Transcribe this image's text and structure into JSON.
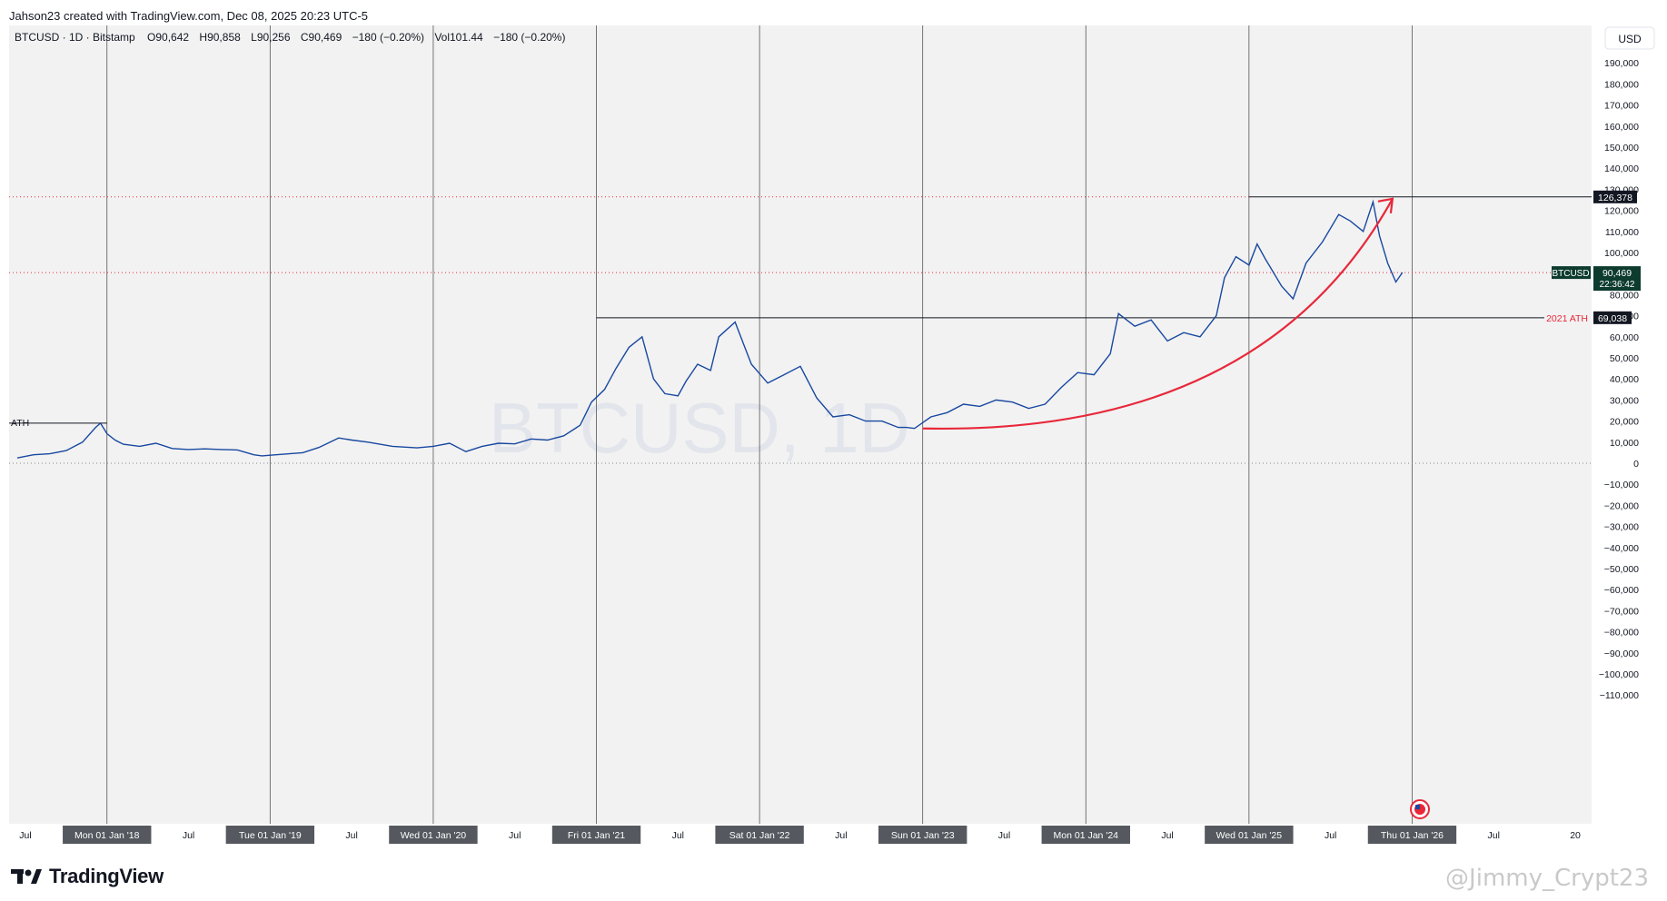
{
  "header": {
    "credit": "Jahson23 created with TradingView.com, Dec 08, 2025 20:23 UTC-5"
  },
  "legend": {
    "symbol": "BTCUSD · 1D · Bitstamp",
    "open": "O90,642",
    "high": "H90,858",
    "low": "L90,256",
    "close": "C90,469",
    "change": "−180 (−0.20%)",
    "volume": "Vol101.44",
    "volume_change": "−180 (−0.20%)"
  },
  "currency_button": "USD",
  "watermark": "BTCUSD, 1D",
  "footer": {
    "brand": "TradingView",
    "user_watermark": "@Jimmy_Crypt23"
  },
  "colors": {
    "price_line": "#1848a0",
    "arc": "#e8283a",
    "badge_bg": "#131722",
    "price_badge_bg": "#0d3b2e",
    "background": "#f2f2f2"
  },
  "chart_data": {
    "type": "line",
    "title": "BTCUSD · 1D · Bitstamp",
    "xlabel": "",
    "ylabel": "USD",
    "ylim": [
      -115000,
      200000
    ],
    "grid": false,
    "y_ticks": [
      190000,
      180000,
      170000,
      160000,
      150000,
      140000,
      130000,
      120000,
      110000,
      100000,
      80000,
      70000,
      60000,
      50000,
      40000,
      30000,
      20000,
      10000,
      0,
      -10000,
      -20000,
      -30000,
      -40000,
      -50000,
      -60000,
      -70000,
      -80000,
      -90000,
      -100000,
      -110000
    ],
    "y_tick_labels": [
      "190,000",
      "180,000",
      "170,000",
      "160,000",
      "150,000",
      "140,000",
      "130,000",
      "120,000",
      "110,000",
      "100,000",
      "80,000",
      "70,000",
      "60,000",
      "50,000",
      "40,000",
      "30,000",
      "20,000",
      "10,000",
      "0",
      "−10,000",
      "−20,000",
      "−30,000",
      "−40,000",
      "−50,000",
      "−60,000",
      "−70,000",
      "−80,000",
      "−90,000",
      "−100,000",
      "−110,000"
    ],
    "x_ticks": [
      {
        "t": 2017.5,
        "label": "Jul",
        "boxed": false
      },
      {
        "t": 2018.0,
        "label": "Mon 01 Jan '18",
        "boxed": true
      },
      {
        "t": 2018.5,
        "label": "Jul",
        "boxed": false
      },
      {
        "t": 2019.0,
        "label": "Tue 01 Jan '19",
        "boxed": true
      },
      {
        "t": 2019.5,
        "label": "Jul",
        "boxed": false
      },
      {
        "t": 2020.0,
        "label": "Wed 01 Jan '20",
        "boxed": true
      },
      {
        "t": 2020.5,
        "label": "Jul",
        "boxed": false
      },
      {
        "t": 2021.0,
        "label": "Fri 01 Jan '21",
        "boxed": true
      },
      {
        "t": 2021.5,
        "label": "Jul",
        "boxed": false
      },
      {
        "t": 2022.0,
        "label": "Sat 01 Jan '22",
        "boxed": true
      },
      {
        "t": 2022.5,
        "label": "Jul",
        "boxed": false
      },
      {
        "t": 2023.0,
        "label": "Sun 01 Jan '23",
        "boxed": true
      },
      {
        "t": 2023.5,
        "label": "Jul",
        "boxed": false
      },
      {
        "t": 2024.0,
        "label": "Mon 01 Jan '24",
        "boxed": true
      },
      {
        "t": 2024.5,
        "label": "Jul",
        "boxed": false
      },
      {
        "t": 2025.0,
        "label": "Wed 01 Jan '25",
        "boxed": true
      },
      {
        "t": 2025.5,
        "label": "Jul",
        "boxed": false
      },
      {
        "t": 2026.0,
        "label": "Thu 01 Jan '26",
        "boxed": true
      },
      {
        "t": 2026.5,
        "label": "Jul",
        "boxed": false
      },
      {
        "t": 2027.0,
        "label": "20",
        "boxed": false
      }
    ],
    "series": [
      {
        "name": "BTCUSD",
        "x": [
          2017.45,
          2017.55,
          2017.65,
          2017.75,
          2017.85,
          2017.93,
          2017.96,
          2018.0,
          2018.05,
          2018.1,
          2018.2,
          2018.3,
          2018.4,
          2018.5,
          2018.6,
          2018.7,
          2018.8,
          2018.9,
          2018.95,
          2019.0,
          2019.2,
          2019.3,
          2019.42,
          2019.5,
          2019.6,
          2019.75,
          2019.9,
          2020.0,
          2020.1,
          2020.2,
          2020.3,
          2020.4,
          2020.5,
          2020.6,
          2020.7,
          2020.8,
          2020.9,
          2020.97,
          2021.05,
          2021.12,
          2021.2,
          2021.28,
          2021.35,
          2021.42,
          2021.5,
          2021.55,
          2021.62,
          2021.7,
          2021.75,
          2021.85,
          2021.9,
          2021.95,
          2022.05,
          2022.15,
          2022.25,
          2022.35,
          2022.45,
          2022.55,
          2022.65,
          2022.75,
          2022.85,
          2022.9,
          2022.95,
          2023.05,
          2023.15,
          2023.25,
          2023.35,
          2023.45,
          2023.55,
          2023.65,
          2023.75,
          2023.85,
          2023.95,
          2024.05,
          2024.15,
          2024.2,
          2024.3,
          2024.4,
          2024.5,
          2024.6,
          2024.7,
          2024.8,
          2024.85,
          2024.92,
          2025.0,
          2025.05,
          2025.1,
          2025.2,
          2025.27,
          2025.35,
          2025.45,
          2025.55,
          2025.62,
          2025.7,
          2025.76,
          2025.8,
          2025.85,
          2025.9,
          2025.94
        ],
        "values": [
          2500,
          4000,
          4500,
          6000,
          10000,
          17000,
          19000,
          14000,
          11000,
          9000,
          8000,
          9500,
          7000,
          6500,
          6800,
          6500,
          6300,
          4000,
          3500,
          3800,
          5000,
          7500,
          12000,
          11000,
          10000,
          8000,
          7300,
          8000,
          9500,
          5500,
          8000,
          9500,
          9200,
          11500,
          11000,
          13000,
          18000,
          29000,
          35000,
          45000,
          55000,
          60000,
          40000,
          33000,
          32000,
          39000,
          47000,
          44000,
          60000,
          67000,
          57000,
          47000,
          38000,
          42000,
          46000,
          31000,
          22000,
          23000,
          20000,
          20000,
          17000,
          17000,
          16500,
          22000,
          24000,
          28000,
          27000,
          30000,
          29000,
          26000,
          28000,
          36000,
          43000,
          42000,
          52000,
          71000,
          65000,
          68000,
          58000,
          62000,
          60000,
          70000,
          88000,
          98000,
          94000,
          104000,
          97000,
          84000,
          78000,
          95000,
          105000,
          118000,
          115000,
          110000,
          124000,
          108000,
          95000,
          86000,
          90469
        ]
      }
    ],
    "annotations": {
      "ath_2017": {
        "label": "ATH",
        "value": 19000
      },
      "ath_2021": {
        "label": "2021 ATH",
        "value": 69038,
        "price_label": "69,038"
      },
      "ath_2025": {
        "value": 126378,
        "price_label": "126,378"
      },
      "current": {
        "symbol": "BTCUSD",
        "price": "90,469",
        "countdown": "22:36:42",
        "value": 90469
      },
      "arc": {
        "from": {
          "x": 2023.0,
          "y": 16500
        },
        "to": {
          "x": 2025.88,
          "y": 126378
        }
      }
    }
  }
}
